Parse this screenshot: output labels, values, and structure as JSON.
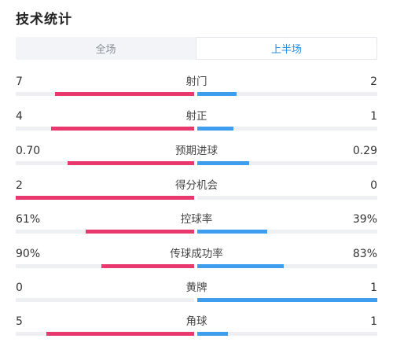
{
  "title": "技术统计",
  "tabs": [
    {
      "label": "全场",
      "active": false
    },
    {
      "label": "上半场",
      "active": true
    }
  ],
  "colors": {
    "home": "#e8386e",
    "away": "#3d9ef0",
    "track": "#eeeff2",
    "active_tab": "#2a8de0"
  },
  "stats": [
    {
      "label": "射门",
      "left": "7",
      "right": "2",
      "left_fill": 0.78,
      "right_fill": 0.22
    },
    {
      "label": "射正",
      "left": "4",
      "right": "1",
      "left_fill": 0.8,
      "right_fill": 0.2
    },
    {
      "label": "预期进球",
      "left": "0.70",
      "right": "0.29",
      "left_fill": 0.71,
      "right_fill": 0.29
    },
    {
      "label": "得分机会",
      "left": "2",
      "right": "0",
      "left_fill": 1.0,
      "right_fill": 0.0
    },
    {
      "label": "控球率",
      "left": "61%",
      "right": "39%",
      "left_fill": 0.61,
      "right_fill": 0.39
    },
    {
      "label": "传球成功率",
      "left": "90%",
      "right": "83%",
      "left_fill": 0.52,
      "right_fill": 0.48
    },
    {
      "label": "黄牌",
      "left": "0",
      "right": "1",
      "left_fill": 0.0,
      "right_fill": 1.0
    },
    {
      "label": "角球",
      "left": "5",
      "right": "1",
      "left_fill": 0.83,
      "right_fill": 0.17
    }
  ]
}
